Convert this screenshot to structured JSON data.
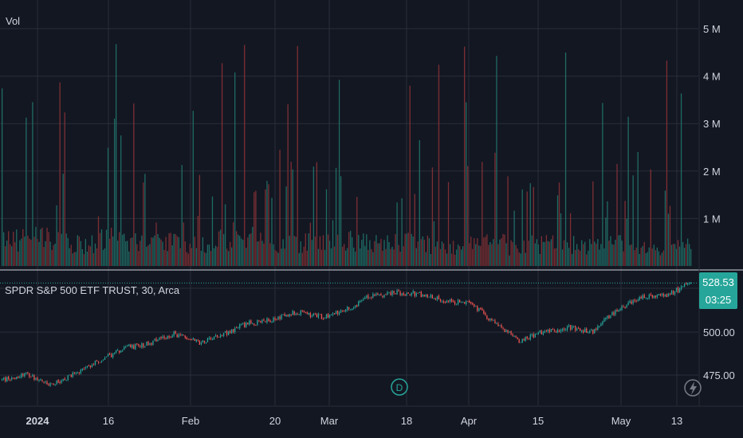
{
  "volume_pane": {
    "label": "Vol",
    "ticks": [
      "5 M",
      "4 M",
      "3 M",
      "2 M",
      "1 M"
    ],
    "tick_values": [
      5000000,
      4000000,
      3000000,
      2000000,
      1000000
    ]
  },
  "price_pane": {
    "legend": "SPDR S&P 500 ETF TRUST, 30, Arca",
    "ticks": [
      "500.00",
      "475.00"
    ],
    "tick_values": [
      500,
      475
    ],
    "last_price": "528.53",
    "countdown": "03:25",
    "dividend_marker": "D"
  },
  "time_axis": {
    "labels": [
      "2024",
      "16",
      "Feb",
      "20",
      "Mar",
      "18",
      "Apr",
      "15",
      "May",
      "13"
    ]
  },
  "colors": {
    "background": "#131722",
    "grid": "#2a2e39",
    "up": "#26a69a",
    "down": "#ef5350",
    "up_volume": "#1f6b64",
    "down_volume": "#7d2f34",
    "axis_text": "#d1d4dc",
    "price_badge": "#26a69a",
    "dividend": "#26a69a"
  },
  "chart_data": [
    {
      "type": "bar",
      "title": "",
      "series_label": "Vol",
      "ylim": [
        0,
        5500000
      ],
      "note_values": "30-minute volume bars, approx. 0.3M–4.8M",
      "profile": [
        0.55,
        0.6,
        0.5,
        0.45,
        0.6,
        0.55,
        0.5,
        0.5,
        0.45,
        0.55,
        0.6,
        0.5,
        0.45,
        0.5,
        0.5,
        0.55,
        0.45,
        0.5,
        0.45,
        0.4,
        0.45,
        0.5,
        0.4,
        0.45,
        0.45,
        0.4,
        0.45,
        0.4,
        0.35,
        0.4
      ]
    },
    {
      "type": "line",
      "title": "SPDR S&P 500 ETF TRUST, 30, Arca",
      "ylim": [
        458,
        534
      ],
      "x": [
        "2024-01-02",
        "2024-01-05",
        "2024-01-10",
        "2024-01-16",
        "2024-01-22",
        "2024-01-29",
        "2024-02-02",
        "2024-02-08",
        "2024-02-13",
        "2024-02-16",
        "2024-02-22",
        "2024-02-29",
        "2024-03-06",
        "2024-03-12",
        "2024-03-18",
        "2024-03-22",
        "2024-03-28",
        "2024-04-01",
        "2024-04-04",
        "2024-04-10",
        "2024-04-15",
        "2024-04-19",
        "2024-04-23",
        "2024-04-29",
        "2024-05-01",
        "2024-05-06",
        "2024-05-10",
        "2024-05-13",
        "2024-05-15"
      ],
      "values": [
        472.0,
        476.0,
        469.0,
        476.0,
        484.0,
        491.0,
        493.0,
        499.0,
        494.0,
        499.0,
        505.0,
        507.0,
        512.0,
        509.0,
        513.0,
        521.0,
        523.0,
        522.0,
        518.0,
        517.0,
        506.0,
        495.0,
        500.0,
        503.0,
        500.0,
        513.0,
        520.0,
        521.0,
        528.53
      ]
    }
  ]
}
